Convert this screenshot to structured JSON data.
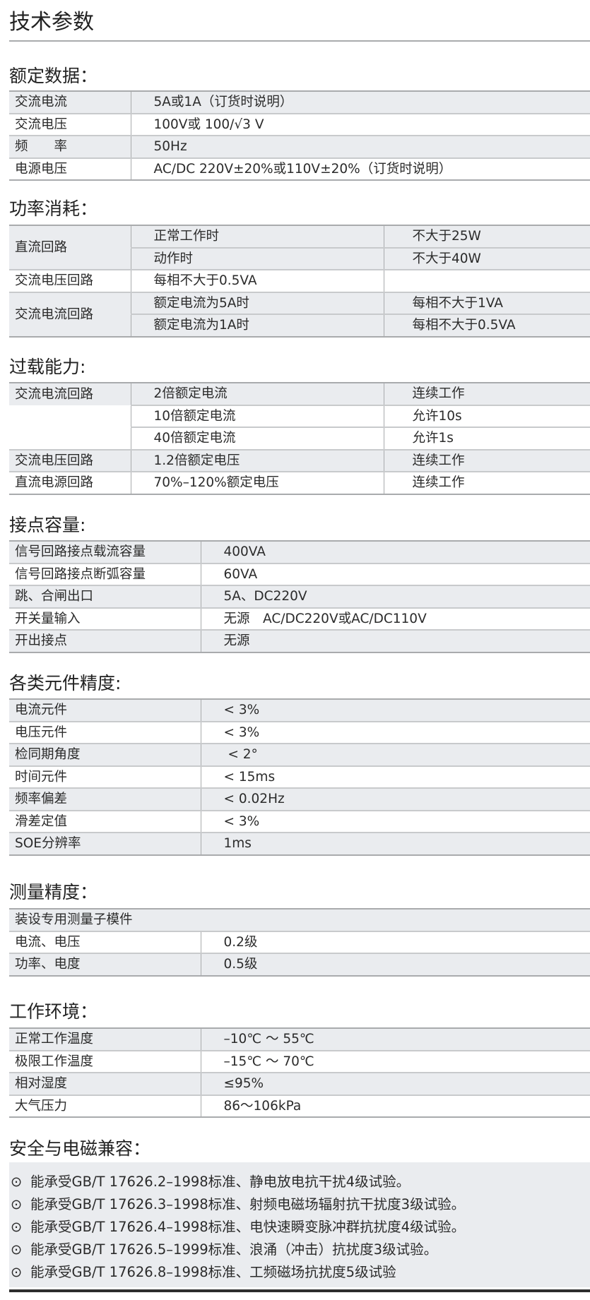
{
  "title": "技术参数",
  "rated": {
    "heading": "额定数据：",
    "rows": [
      [
        "交流电流",
        "5A或1A（订货时说明）"
      ],
      [
        "交流电压",
        "100V或 100/√3 V"
      ],
      [
        "频　　率",
        "50Hz"
      ],
      [
        "电源电压",
        "AC/DC 220V±20%或110V±20%（订货时说明）"
      ]
    ]
  },
  "power": {
    "heading": "功率消耗：",
    "groups": [
      {
        "name": "直流回路",
        "rows": [
          [
            "正常工作时",
            "不大于25W"
          ],
          [
            "动作时",
            "不大于40W"
          ]
        ]
      },
      {
        "name": "交流电压回路",
        "rows": [
          [
            "每相不大于0.5VA",
            ""
          ]
        ]
      },
      {
        "name": "交流电流回路",
        "rows": [
          [
            "额定电流为5A时",
            "每相不大于1VA"
          ],
          [
            "额定电流为1A时",
            "每相不大于0.5VA"
          ]
        ]
      }
    ]
  },
  "overload": {
    "heading": "过载能力:",
    "rows": [
      [
        "交流电流回路",
        "2倍额定电流",
        "连续工作"
      ],
      [
        "",
        "10倍额定电流",
        "允许10s"
      ],
      [
        "",
        "40倍额定电流",
        "允许1s"
      ],
      [
        "交流电压回路",
        "1.2倍额定电压",
        "连续工作"
      ],
      [
        "直流电源回路",
        "70%–120%额定电压",
        "连续工作"
      ]
    ]
  },
  "contact": {
    "heading": "接点容量:",
    "rows": [
      [
        "信号回路接点载流容量",
        "400VA"
      ],
      [
        "信号回路接点断弧容量",
        "60VA"
      ],
      [
        "跳、合闸出口",
        "5A、DC220V"
      ],
      [
        "开关量输入",
        "无源　AC/DC220V或AC/DC110V"
      ],
      [
        "开出接点",
        "无源"
      ]
    ]
  },
  "accuracy": {
    "heading": "各类元件精度:",
    "rows": [
      [
        "电流元件",
        "< 3%"
      ],
      [
        "电压元件",
        "< 3%"
      ],
      [
        "检同期角度",
        " < 2°"
      ],
      [
        "时间元件",
        "< 15ms"
      ],
      [
        "频率偏差",
        "< 0.02Hz"
      ],
      [
        "滑差定值",
        "< 3%"
      ],
      [
        "SOE分辨率",
        "1ms"
      ]
    ]
  },
  "measure": {
    "heading": "测量精度：",
    "note": "装设专用测量子模件",
    "rows": [
      [
        "电流、电压",
        "0.2级"
      ],
      [
        "功率、电度",
        "0.5级"
      ]
    ]
  },
  "env": {
    "heading": "工作环境：",
    "rows": [
      [
        "正常工作温度",
        "–10℃ ～ 55℃"
      ],
      [
        "极限工作温度",
        "–15℃ ～ 70℃"
      ],
      [
        "相对湿度",
        "≤95%"
      ],
      [
        "大气压力",
        "86～106kPa"
      ]
    ]
  },
  "safety": {
    "heading": "安全与电磁兼容：",
    "bullet": "⊙",
    "items": [
      "能承受GB/T 17626.2–1998标准、静电放电抗干扰4级试验。",
      "能承受GB/T 17626.3–1998标准、射频电磁场辐射抗干扰度3级试验。",
      "能承受GB/T 17626.4–1998标准、电快速瞬变脉冲群抗扰度4级试验。",
      "能承受GB/T 17626.5–1999标准、浪涌（冲击）抗扰度3级试验。",
      "能承受GB/T 17626.8–1998标准、工频磁场抗扰度5级试验"
    ]
  }
}
